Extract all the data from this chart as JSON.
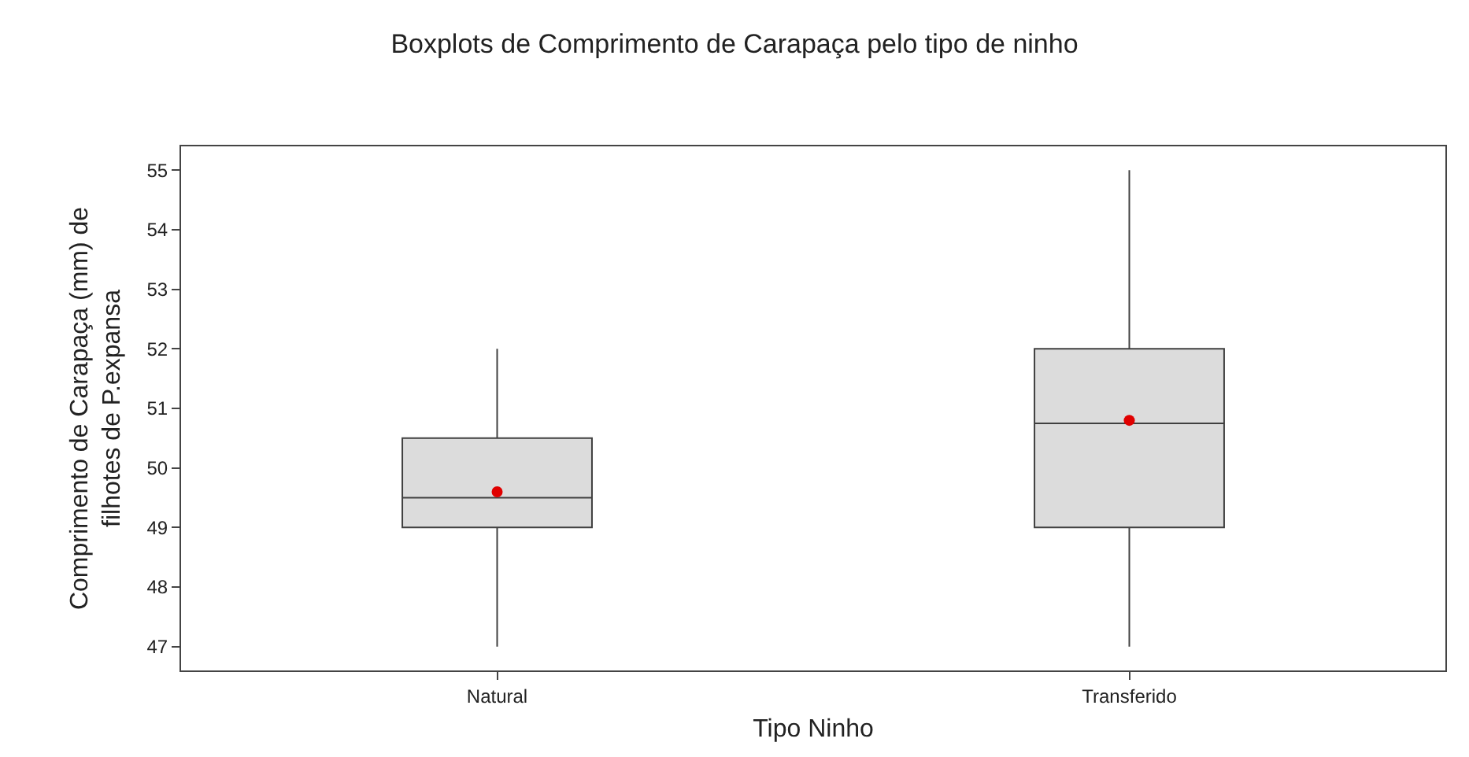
{
  "chart_data": {
    "type": "box",
    "title": "Boxplots de Comprimento de Carapaça pelo tipo de ninho",
    "xlabel": "Tipo Ninho",
    "ylabel": "Comprimento de Carapaça (mm) de\nfilhotes de P.expansa",
    "categories": [
      "Natural",
      "Transferido"
    ],
    "series": [
      {
        "color": "#dcdcdc",
        "boxes": [
          {
            "low": 47,
            "q1": 49,
            "median": 49.5,
            "q3": 50.5,
            "high": 52,
            "mean": 49.6
          },
          {
            "low": 47,
            "q1": 49,
            "median": 50.75,
            "q3": 52,
            "high": 55,
            "mean": 50.8
          }
        ]
      }
    ],
    "ylim": [
      46.6,
      55.4
    ],
    "yticks": [
      47,
      48,
      49,
      50,
      51,
      52,
      53,
      54,
      55
    ]
  }
}
